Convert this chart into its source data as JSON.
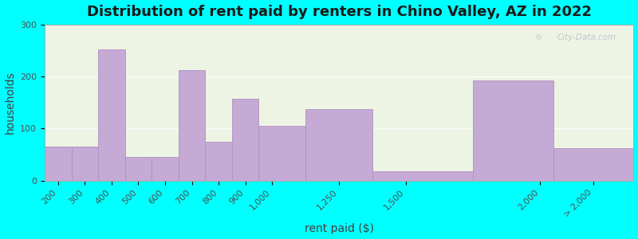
{
  "title": "Distribution of rent paid by renters in Chino Valley, AZ in 2022",
  "xlabel": "rent paid ($)",
  "ylabel": "households",
  "tick_positions": [
    200,
    300,
    400,
    500,
    600,
    700,
    800,
    900,
    1000,
    1250,
    1500,
    2000,
    2200
  ],
  "tick_labels": [
    "200",
    "300",
    "400",
    "500",
    "600",
    "700",
    "800",
    "900",
    "1,000",
    "1,250",
    "1,500",
    "2,000",
    "> 2,000"
  ],
  "bar_lefts": [
    150,
    250,
    350,
    450,
    550,
    650,
    750,
    850,
    950,
    1125,
    1375,
    1750,
    2050
  ],
  "bar_widths": [
    100,
    100,
    100,
    100,
    100,
    100,
    100,
    100,
    175,
    250,
    375,
    300,
    300
  ],
  "bar_values": [
    65,
    65,
    252,
    45,
    45,
    212,
    75,
    157,
    105,
    138,
    18,
    192,
    62
  ],
  "bar_color": "#c4aad4",
  "bar_edge_color": "#b090c0",
  "background_outer": "#00ffff",
  "background_inner": "#eef4e4",
  "ylim": [
    0,
    300
  ],
  "yticks": [
    0,
    100,
    200,
    300
  ],
  "title_fontsize": 13,
  "axis_label_fontsize": 10,
  "tick_fontsize": 8,
  "watermark_text": "City-Data.com"
}
